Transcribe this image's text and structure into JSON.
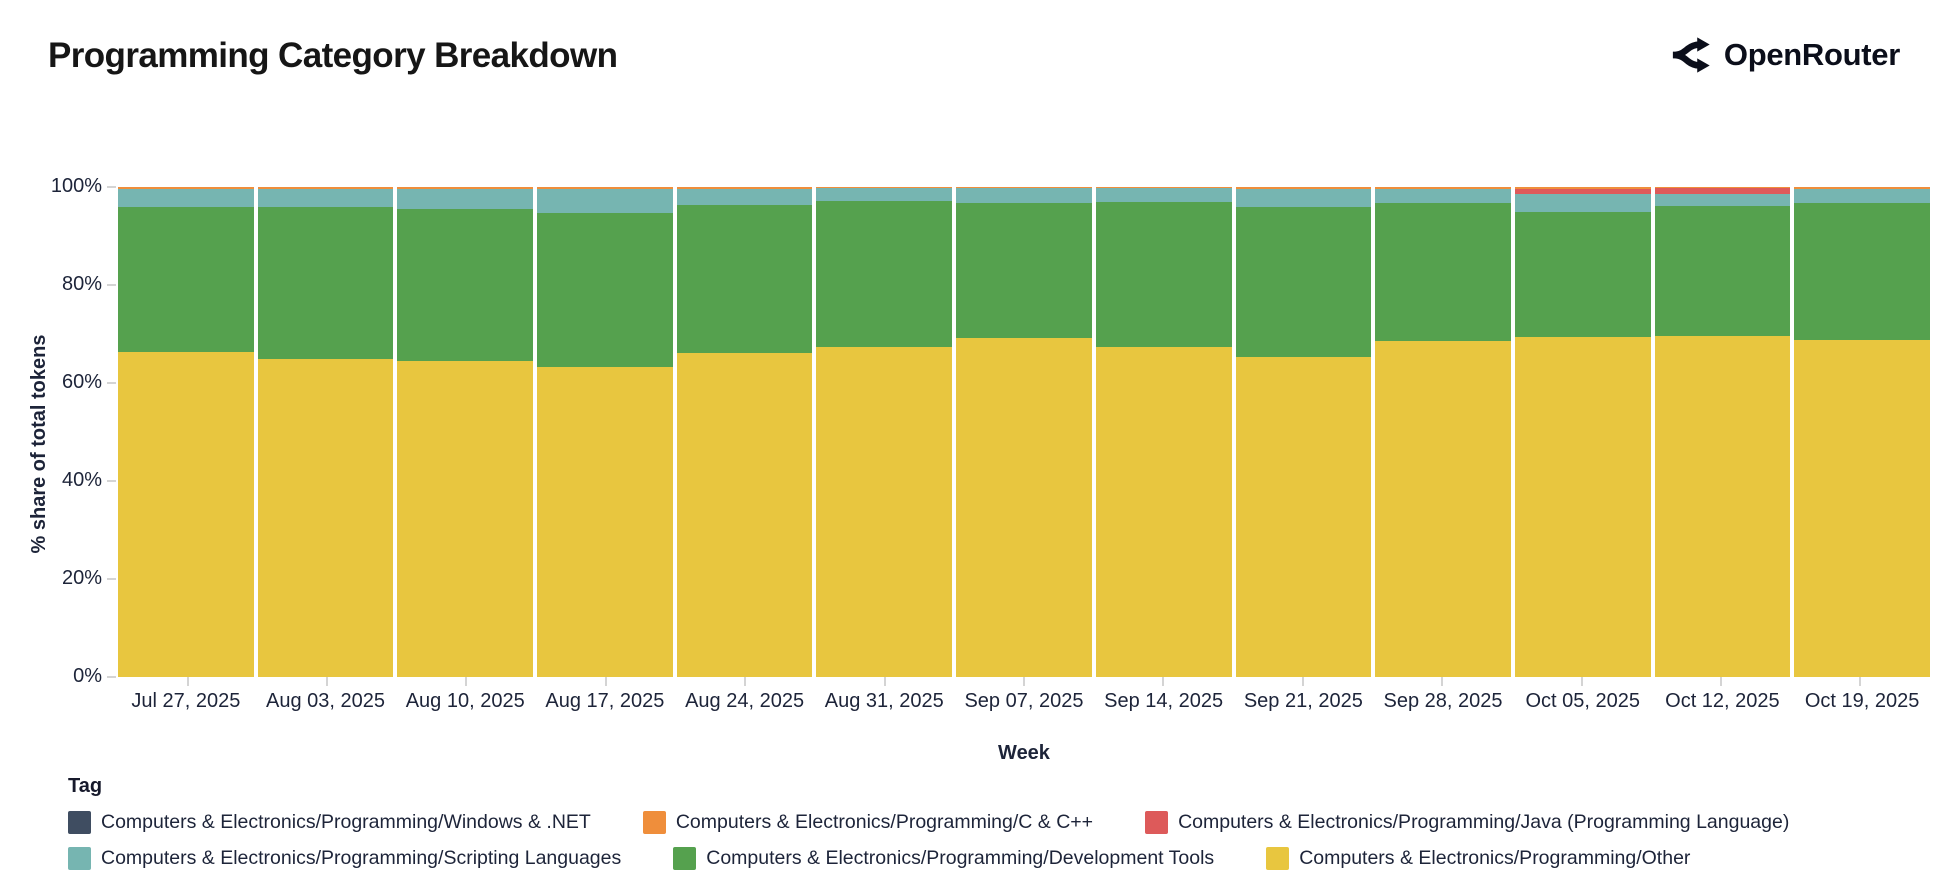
{
  "header": {
    "title": "Programming Category Breakdown",
    "brand": "OpenRouter"
  },
  "chart_data": {
    "type": "bar",
    "stacked": true,
    "normalized_percent": true,
    "title": "Programming Category Breakdown",
    "xlabel": "Week",
    "ylabel": "% share of total tokens",
    "ylim": [
      0,
      100
    ],
    "grid": false,
    "legend_title": "Tag",
    "legend_position": "bottom",
    "yticks": [
      {
        "value": 0,
        "label": "0%"
      },
      {
        "value": 20,
        "label": "20%"
      },
      {
        "value": 40,
        "label": "40%"
      },
      {
        "value": 60,
        "label": "60%"
      },
      {
        "value": 80,
        "label": "80%"
      },
      {
        "value": 100,
        "label": "100%"
      }
    ],
    "categories": [
      "Jul 27, 2025",
      "Aug 03, 2025",
      "Aug 10, 2025",
      "Aug 17, 2025",
      "Aug 24, 2025",
      "Aug 31, 2025",
      "Sep 07, 2025",
      "Sep 14, 2025",
      "Sep 21, 2025",
      "Sep 28, 2025",
      "Oct 05, 2025",
      "Oct 12, 2025",
      "Oct 19, 2025"
    ],
    "series": [
      {
        "name": "Computers & Electronics/Programming/Other",
        "color": "#e8c63f",
        "pattern": null,
        "values": [
          66.3,
          64.9,
          64.4,
          63.2,
          66.2,
          67.4,
          69.2,
          67.3,
          65.4,
          68.5,
          69.3,
          69.5,
          68.8
        ]
      },
      {
        "name": "Computers & Electronics/Programming/Development Tools",
        "color": "#55a14e",
        "pattern": null,
        "values": [
          29.6,
          31.0,
          31.2,
          31.6,
          30.2,
          29.8,
          27.6,
          29.6,
          30.5,
          28.2,
          25.6,
          26.7,
          27.9
        ]
      },
      {
        "name": "Computers & Electronics/Programming/Scripting Languages",
        "color": "#76b5b1",
        "pattern": null,
        "values": [
          3.8,
          3.8,
          4.1,
          4.9,
          3.3,
          2.5,
          2.9,
          2.8,
          3.8,
          3.0,
          3.6,
          2.3,
          3.0
        ]
      },
      {
        "name": "Computers & Electronics/Programming/Java (Programming Language)",
        "color": "#dd5a5a",
        "pattern": null,
        "values": [
          0,
          0,
          0,
          0,
          0,
          0,
          0,
          0,
          0,
          0,
          1.2,
          1.2,
          0
        ]
      },
      {
        "name": "Computers & Electronics/Programming/C & C++",
        "color": "#ef8e3b",
        "pattern": null,
        "values": [
          0.25,
          0.25,
          0.25,
          0.25,
          0.25,
          0.25,
          0.25,
          0.25,
          0.25,
          0.25,
          0.25,
          0.25,
          0.25
        ]
      },
      {
        "name": "Computers & Electronics/Programming/Windows & .NET",
        "color": "#3f4d61",
        "pattern": "dots",
        "values": [
          0.05,
          0.05,
          0.05,
          0.05,
          0.05,
          0.05,
          0.05,
          0.05,
          0.05,
          0.05,
          0.05,
          0.05,
          0.05
        ]
      }
    ],
    "legend_rows": [
      [
        5,
        4,
        3
      ],
      [
        2,
        1,
        0
      ]
    ]
  }
}
